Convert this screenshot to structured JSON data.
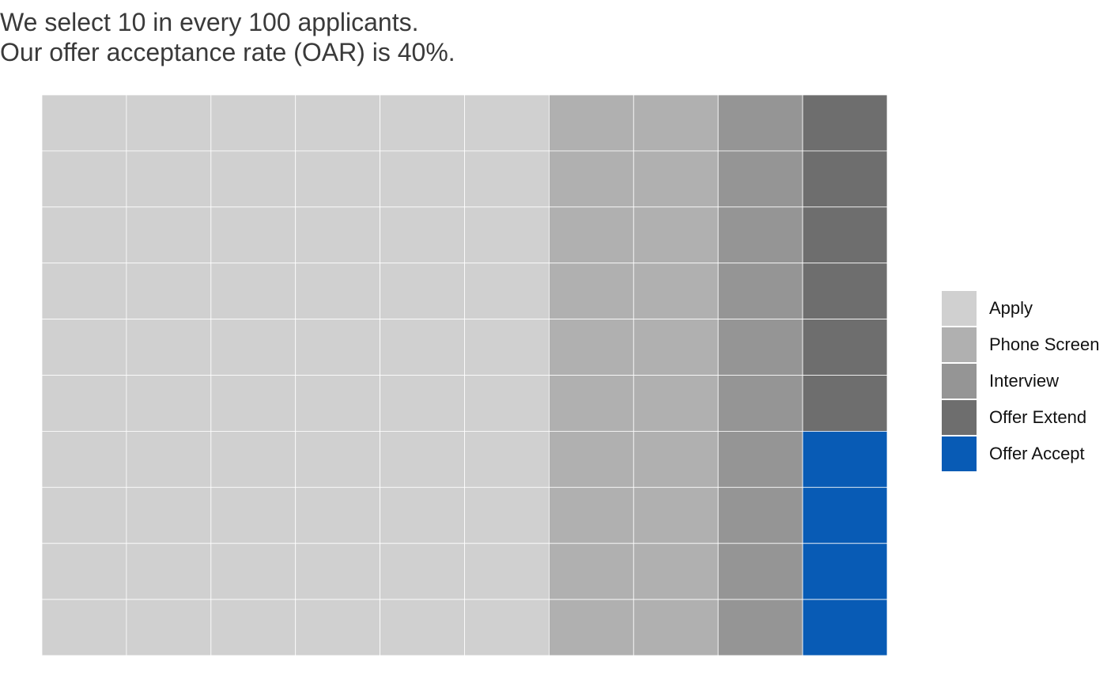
{
  "chart_data": {
    "type": "waffle",
    "title": "We select 10 in every 100 applicants.",
    "subtitle": "Our offer acceptance rate (OAR) is 40%.",
    "rows": 10,
    "columns": 10,
    "total": 100,
    "fill_order": "column-major, bottom-to-top, right-to-left",
    "categories": [
      {
        "name": "Apply",
        "count": 60,
        "color": "#d0d0d0"
      },
      {
        "name": "Phone Screen",
        "count": 20,
        "color": "#b0b0b0"
      },
      {
        "name": "Interview",
        "count": 10,
        "color": "#959595"
      },
      {
        "name": "Offer Extend",
        "count": 6,
        "color": "#6e6e6e"
      },
      {
        "name": "Offer Accept",
        "count": 4,
        "color": "#085bb5"
      }
    ],
    "legend_position": "right",
    "grid_line_color": "#ffffff"
  }
}
